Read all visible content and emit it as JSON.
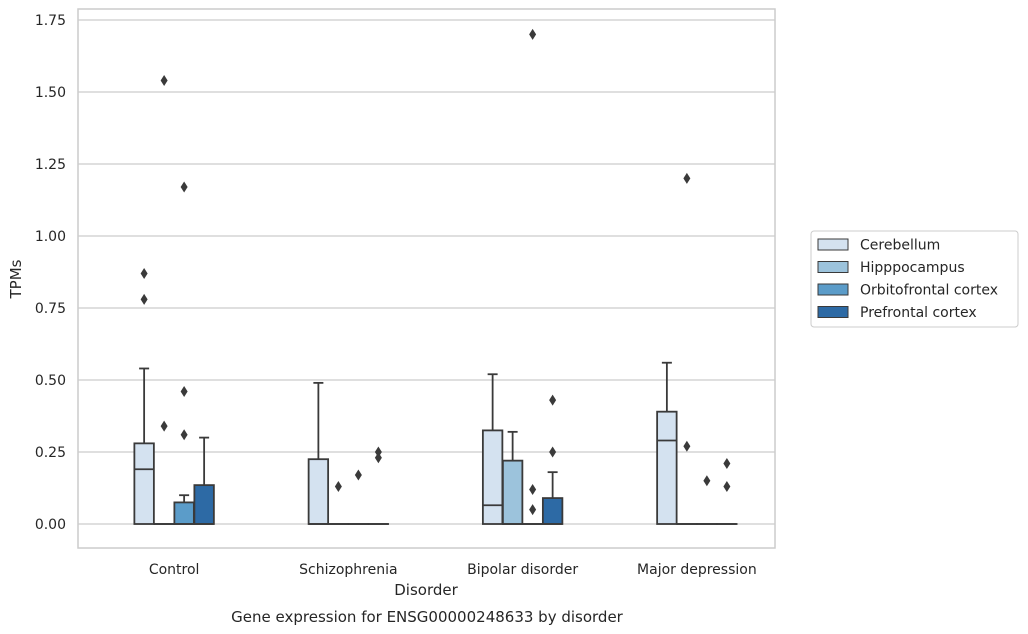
{
  "chart_data": {
    "type": "box",
    "xlabel": "Disorder",
    "ylabel": "TPMs",
    "caption": "Gene expression for ENSG00000248633 by disorder",
    "ylim": [
      -0.08,
      1.78
    ],
    "yticks": [
      0.0,
      0.25,
      0.5,
      0.75,
      1.0,
      1.25,
      1.5,
      1.75
    ],
    "ytick_labels": [
      "0.00",
      "0.25",
      "0.50",
      "0.75",
      "1.00",
      "1.25",
      "1.50",
      "1.75"
    ],
    "grid": "horizontal",
    "legend_position": "right",
    "categories": [
      "Control",
      "Schizophrenia",
      "Bipolar disorder",
      "Major depression"
    ],
    "series": [
      {
        "name": "Cerebellum",
        "color": "#d4e2f0",
        "boxes": [
          {
            "q1": 0.0,
            "median": 0.19,
            "q3": 0.28,
            "whisker_low": 0.0,
            "whisker_high": 0.54,
            "outliers": [
              0.78,
              0.87
            ]
          },
          {
            "q1": 0.0,
            "median": 0.0,
            "q3": 0.225,
            "whisker_low": 0.0,
            "whisker_high": 0.49,
            "outliers": []
          },
          {
            "q1": 0.0,
            "median": 0.065,
            "q3": 0.325,
            "whisker_low": 0.0,
            "whisker_high": 0.52,
            "outliers": []
          },
          {
            "q1": 0.0,
            "median": 0.29,
            "q3": 0.39,
            "whisker_low": 0.0,
            "whisker_high": 0.56,
            "outliers": []
          }
        ]
      },
      {
        "name": "Hipppocampus",
        "color": "#9cc3dc",
        "boxes": [
          {
            "q1": 0.0,
            "median": 0.0,
            "q3": 0.0,
            "whisker_low": 0.0,
            "whisker_high": 0.0,
            "outliers": [
              0.34,
              1.54
            ]
          },
          {
            "q1": 0.0,
            "median": 0.0,
            "q3": 0.0,
            "whisker_low": 0.0,
            "whisker_high": 0.0,
            "outliers": [
              0.13
            ]
          },
          {
            "q1": 0.0,
            "median": 0.0,
            "q3": 0.22,
            "whisker_low": 0.0,
            "whisker_high": 0.32,
            "outliers": []
          },
          {
            "q1": 0.0,
            "median": 0.0,
            "q3": 0.0,
            "whisker_low": 0.0,
            "whisker_high": 0.0,
            "outliers": [
              0.27,
              1.2
            ]
          }
        ]
      },
      {
        "name": "Orbitofrontal cortex",
        "color": "#5b9cc9",
        "boxes": [
          {
            "q1": 0.0,
            "median": 0.0,
            "q3": 0.075,
            "whisker_low": 0.0,
            "whisker_high": 0.1,
            "outliers": [
              0.31,
              0.46,
              1.17
            ]
          },
          {
            "q1": 0.0,
            "median": 0.0,
            "q3": 0.0,
            "whisker_low": 0.0,
            "whisker_high": 0.0,
            "outliers": [
              0.17
            ]
          },
          {
            "q1": 0.0,
            "median": 0.0,
            "q3": 0.0,
            "whisker_low": 0.0,
            "whisker_high": 0.0,
            "outliers": [
              0.05,
              0.12,
              1.7
            ]
          },
          {
            "q1": 0.0,
            "median": 0.0,
            "q3": 0.0,
            "whisker_low": 0.0,
            "whisker_high": 0.0,
            "outliers": [
              0.15
            ]
          }
        ]
      },
      {
        "name": "Prefrontal cortex",
        "color": "#2d6aa5",
        "boxes": [
          {
            "q1": 0.0,
            "median": 0.0,
            "q3": 0.135,
            "whisker_low": 0.0,
            "whisker_high": 0.3,
            "outliers": []
          },
          {
            "q1": 0.0,
            "median": 0.0,
            "q3": 0.0,
            "whisker_low": 0.0,
            "whisker_high": 0.0,
            "outliers": [
              0.23,
              0.25
            ]
          },
          {
            "q1": 0.0,
            "median": 0.0,
            "q3": 0.09,
            "whisker_low": 0.0,
            "whisker_high": 0.18,
            "outliers": [
              0.25,
              0.43
            ]
          },
          {
            "q1": 0.0,
            "median": 0.0,
            "q3": 0.0,
            "whisker_low": 0.0,
            "whisker_high": 0.0,
            "outliers": [
              0.13,
              0.21
            ]
          }
        ]
      }
    ]
  }
}
